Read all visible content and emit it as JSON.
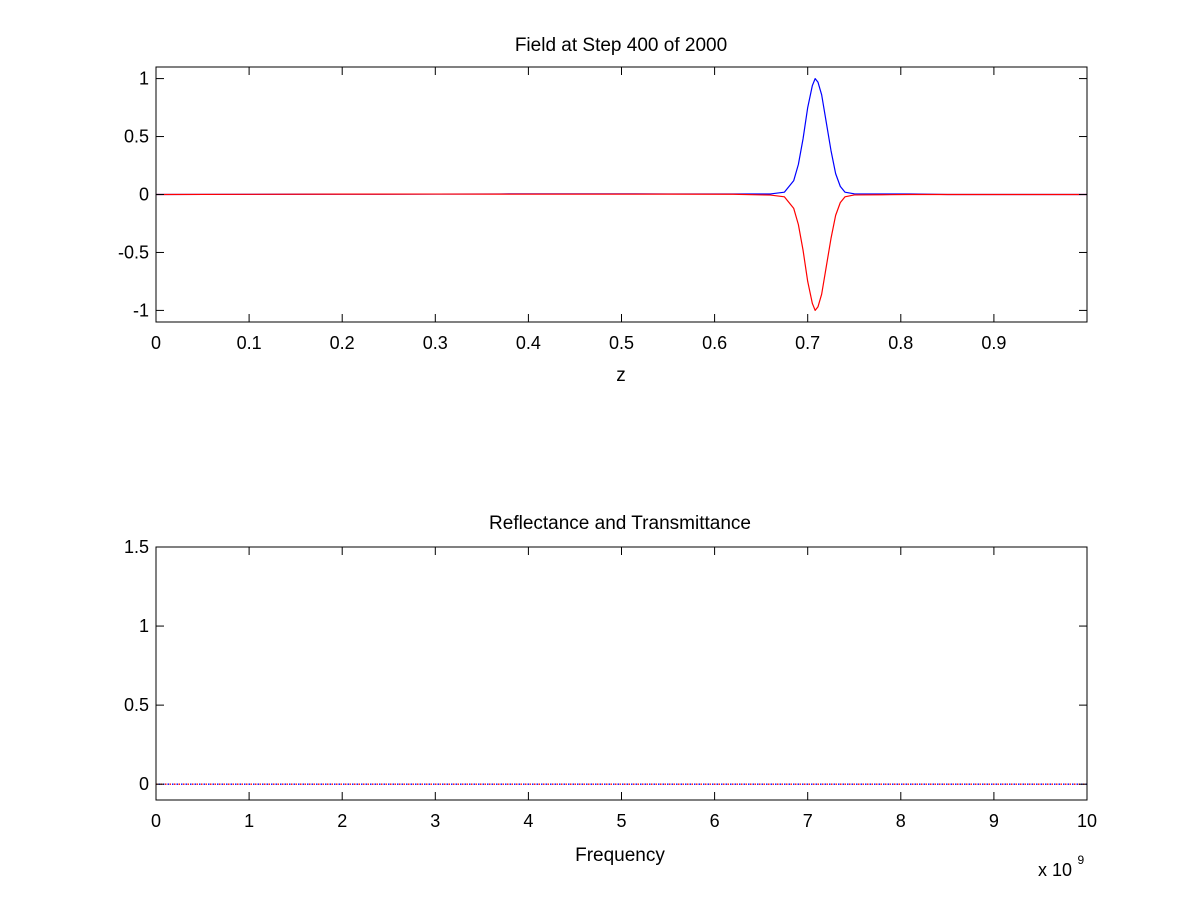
{
  "chart_data": [
    {
      "type": "line",
      "title": "Field at Step 400 of 2000",
      "xlabel": "z",
      "ylabel": "",
      "xlim": [
        0,
        1
      ],
      "ylim": [
        -1.1,
        1.1
      ],
      "xticks": [
        "0",
        "0.1",
        "0.2",
        "0.3",
        "0.4",
        "0.5",
        "0.6",
        "0.7",
        "0.8",
        "0.9"
      ],
      "xtick_values": [
        0,
        0.1,
        0.2,
        0.3,
        0.4,
        0.5,
        0.6,
        0.7,
        0.8,
        0.9
      ],
      "yticks": [
        "1",
        "0.5",
        "0",
        "-0.5",
        "-1"
      ],
      "ytick_values": [
        1,
        0.5,
        0,
        -0.5,
        -1
      ],
      "grid": false,
      "legend": "none",
      "series": [
        {
          "color": "#0000ff",
          "x": [
            0,
            0.2,
            0.3,
            0.37,
            0.45,
            0.55,
            0.62,
            0.66,
            0.675,
            0.685,
            0.69,
            0.695,
            0.7,
            0.705,
            0.708,
            0.711,
            0.715,
            0.72,
            0.725,
            0.73,
            0.735,
            0.74,
            0.75,
            0.78,
            0.81,
            0.85,
            1
          ],
          "y": [
            0,
            0.003,
            0.004,
            0.005,
            0.006,
            0.005,
            0.005,
            0.005,
            0.02,
            0.12,
            0.26,
            0.48,
            0.75,
            0.94,
            1.0,
            0.97,
            0.86,
            0.62,
            0.38,
            0.18,
            0.07,
            0.02,
            0.006,
            0.005,
            0.005,
            0,
            0
          ]
        },
        {
          "color": "#ff0000",
          "x": [
            0,
            0.2,
            0.3,
            0.37,
            0.45,
            0.55,
            0.62,
            0.66,
            0.675,
            0.685,
            0.69,
            0.695,
            0.7,
            0.705,
            0.708,
            0.711,
            0.715,
            0.72,
            0.725,
            0.73,
            0.735,
            0.74,
            0.75,
            0.78,
            0.81,
            0.85,
            1
          ],
          "y": [
            0,
            0.003,
            0.004,
            0.003,
            0.003,
            0.003,
            0.002,
            -0.005,
            -0.02,
            -0.12,
            -0.26,
            -0.48,
            -0.75,
            -0.94,
            -1.0,
            -0.97,
            -0.86,
            -0.62,
            -0.38,
            -0.18,
            -0.07,
            -0.02,
            -0.004,
            -0.002,
            0,
            0,
            0
          ]
        }
      ]
    },
    {
      "type": "line",
      "title": "Reflectance and Transmittance",
      "xlabel": "Frequency",
      "ylabel": "",
      "x_multiplier": "x 10",
      "x_multiplier_exp": "9",
      "xlim": [
        0,
        10
      ],
      "ylim": [
        -0.1,
        1.5
      ],
      "xticks": [
        "0",
        "1",
        "2",
        "3",
        "4",
        "5",
        "6",
        "7",
        "8",
        "9",
        "10"
      ],
      "xtick_values": [
        0,
        1,
        2,
        3,
        4,
        5,
        6,
        7,
        8,
        9,
        10
      ],
      "yticks": [
        "1.5",
        "1",
        "0.5",
        "0"
      ],
      "ytick_values": [
        1.5,
        1,
        0.5,
        0
      ],
      "grid": false,
      "legend": "none",
      "series": [
        {
          "color": "#ff0000",
          "style": "dotted",
          "x": [
            0,
            10
          ],
          "y": [
            0,
            0
          ]
        },
        {
          "color": "#0000ff",
          "style": "dotted",
          "x": [
            0,
            10
          ],
          "y": [
            0,
            0
          ]
        }
      ]
    }
  ]
}
